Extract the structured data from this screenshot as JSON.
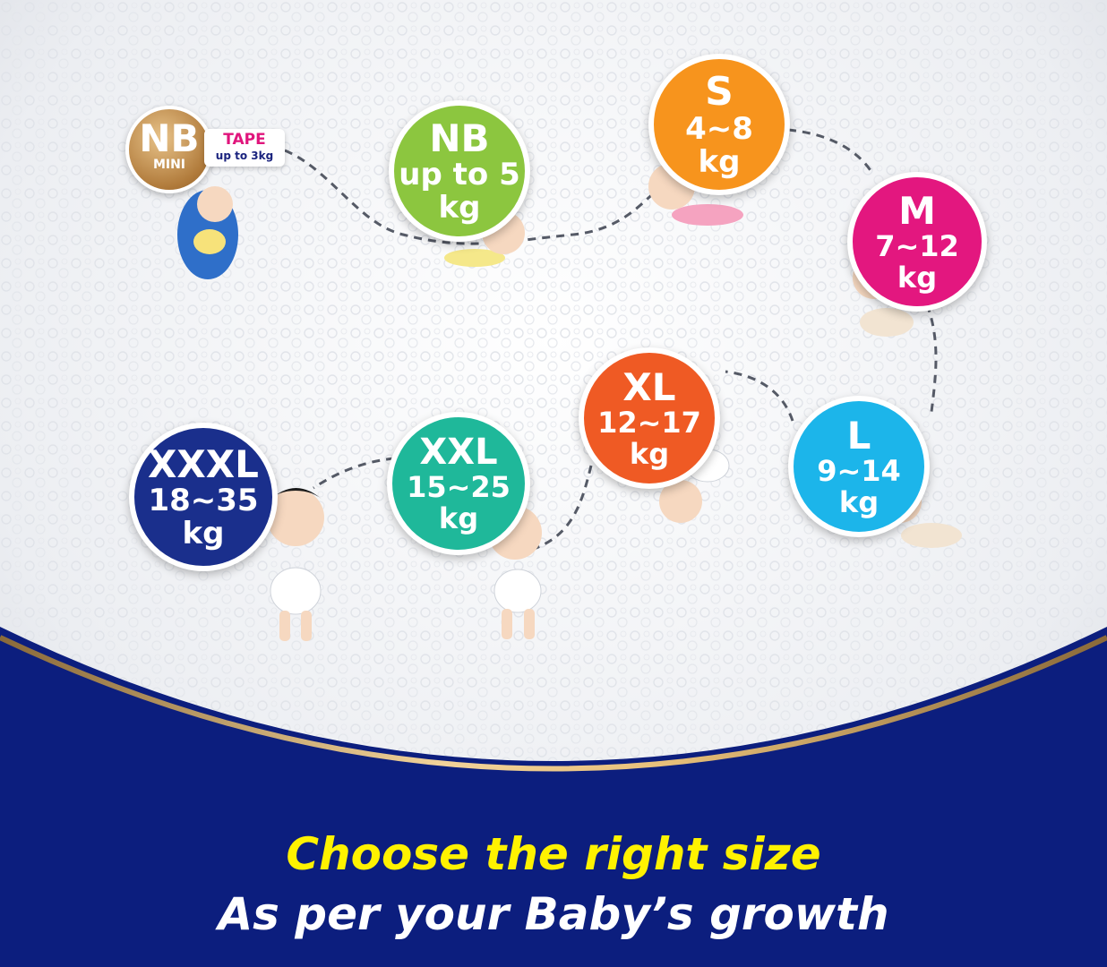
{
  "colors": {
    "navy": "#0c1e7e",
    "gold": "#c9a063",
    "yellow_text": "#fff200",
    "white_text": "#ffffff",
    "nb": "#8cc63f",
    "s": "#f7941d",
    "m": "#e3177f",
    "l": "#1cb5ea",
    "xl": "#ef5a24",
    "xxl": "#1fb89a",
    "xxxl": "#1a2f8c"
  },
  "nb_mini": {
    "brand": "NB",
    "sub": "MINI",
    "tape": "TAPE",
    "range": "up to 3kg",
    "icon": "swaddled-baby-icon"
  },
  "sizes": [
    {
      "id": "nb",
      "size": "NB",
      "range": "up to 5",
      "unit": "kg",
      "color": "#8cc63f",
      "icon": "crawling-baby-icon"
    },
    {
      "id": "s",
      "size": "S",
      "range": "4~8",
      "unit": "kg",
      "color": "#f7941d",
      "icon": "lying-baby-icon"
    },
    {
      "id": "m",
      "size": "M",
      "range": "7~12",
      "unit": "kg",
      "color": "#e3177f",
      "icon": "sitting-baby-icon"
    },
    {
      "id": "l",
      "size": "L",
      "range": "9~14",
      "unit": "kg",
      "color": "#1cb5ea",
      "icon": "crawling-baby-icon"
    },
    {
      "id": "xl",
      "size": "XL",
      "range": "12~17",
      "unit": "kg",
      "color": "#ef5a24",
      "icon": "bending-baby-icon"
    },
    {
      "id": "xxl",
      "size": "XXL",
      "range": "15~25",
      "unit": "kg",
      "color": "#1fb89a",
      "icon": "walking-baby-icon"
    },
    {
      "id": "xxxl",
      "size": "XXXL",
      "range": "18~35",
      "unit": "kg",
      "color": "#1a2f8c",
      "icon": "walking-baby-icon"
    }
  ],
  "tagline": {
    "line1": "Choose the right size",
    "line2": "As per your Baby’s growth"
  }
}
